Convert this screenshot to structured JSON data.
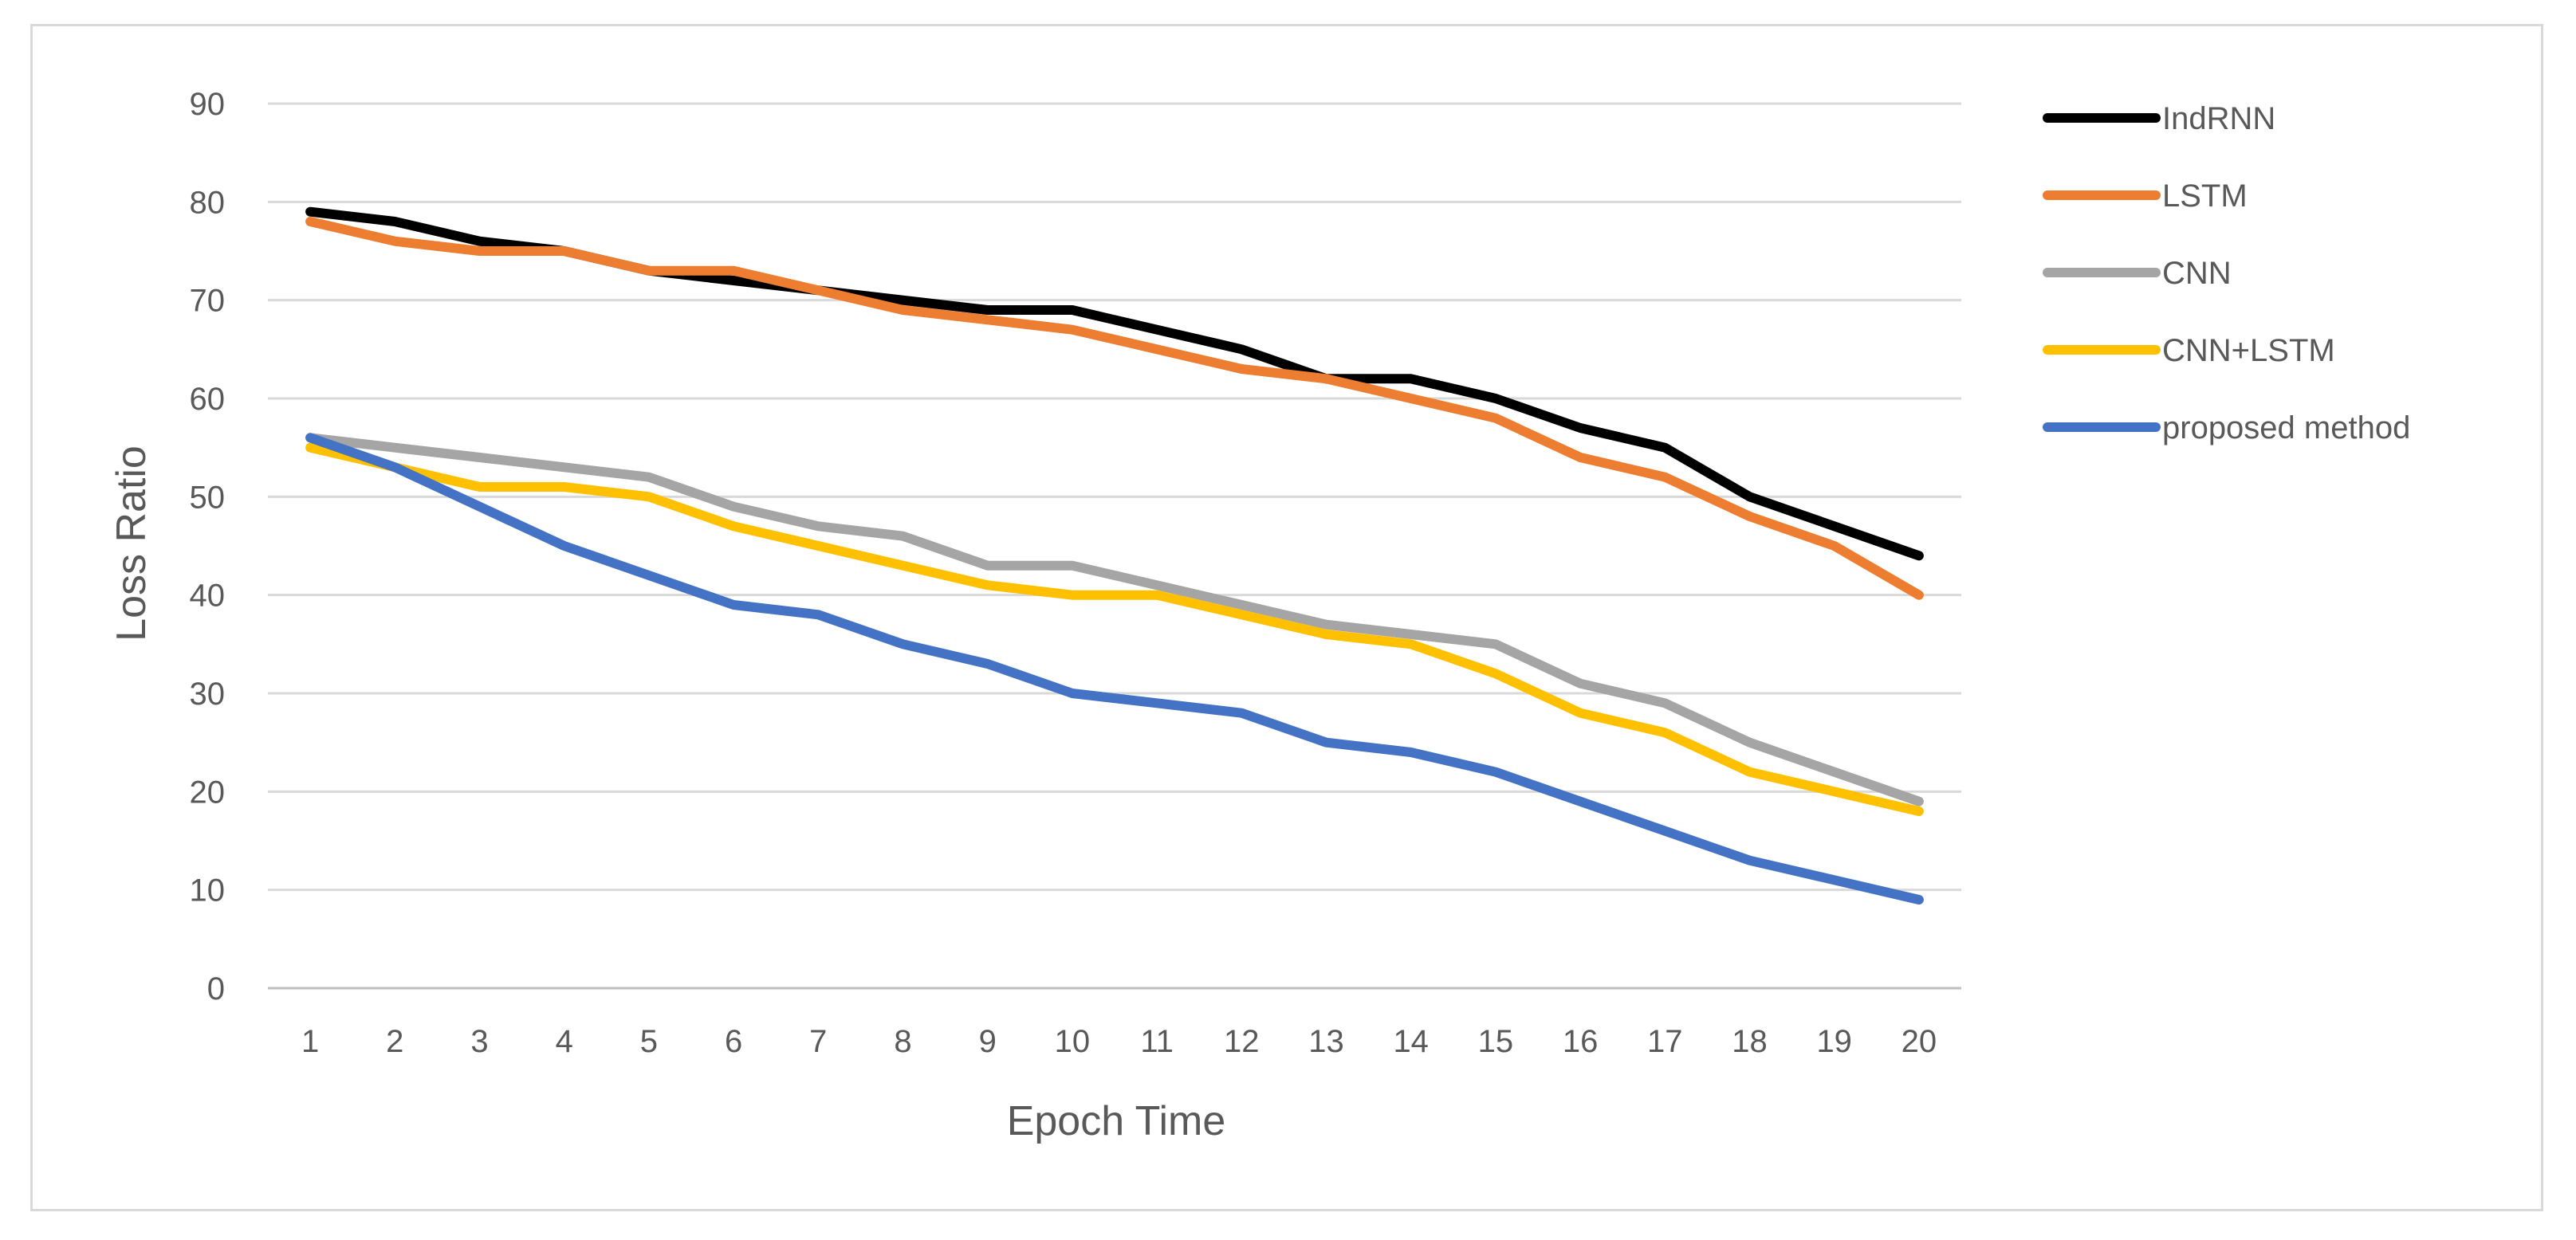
{
  "chart_data": {
    "type": "line",
    "title": "",
    "xlabel": "Epoch Time",
    "ylabel": "Loss Ratio",
    "ylim": [
      0,
      90
    ],
    "yticks": [
      0,
      10,
      20,
      30,
      40,
      50,
      60,
      70,
      80,
      90
    ],
    "grid": true,
    "legend_position": "right",
    "categories": [
      "1",
      "2",
      "3",
      "4",
      "5",
      "6",
      "7",
      "8",
      "9",
      "10",
      "11",
      "12",
      "13",
      "14",
      "15",
      "16",
      "17",
      "18",
      "19",
      "20"
    ],
    "series": [
      {
        "name": "IndRNN",
        "color": "#000000",
        "values": [
          79,
          78,
          76,
          75,
          73,
          72,
          71,
          70,
          69,
          69,
          67,
          65,
          62,
          62,
          60,
          57,
          55,
          50,
          47,
          44
        ]
      },
      {
        "name": "LSTM",
        "color": "#ED7D31",
        "values": [
          78,
          76,
          75,
          75,
          73,
          73,
          71,
          69,
          68,
          67,
          65,
          63,
          62,
          60,
          58,
          54,
          52,
          48,
          45,
          40
        ]
      },
      {
        "name": "CNN",
        "color": "#A5A5A5",
        "values": [
          56,
          55,
          54,
          53,
          52,
          49,
          47,
          46,
          43,
          43,
          41,
          39,
          37,
          36,
          35,
          31,
          29,
          25,
          22,
          19
        ]
      },
      {
        "name": "CNN+LSTM",
        "color": "#FFC000",
        "values": [
          55,
          53,
          51,
          51,
          50,
          47,
          45,
          43,
          41,
          40,
          40,
          38,
          36,
          35,
          32,
          28,
          26,
          22,
          20,
          18
        ]
      },
      {
        "name": "proposed method",
        "color": "#4472C4",
        "values": [
          56,
          53,
          49,
          45,
          42,
          39,
          38,
          35,
          33,
          30,
          29,
          28,
          25,
          24,
          22,
          19,
          16,
          13,
          11,
          9
        ]
      }
    ]
  }
}
